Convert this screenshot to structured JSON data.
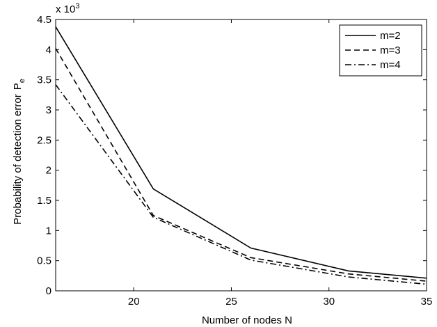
{
  "chart_data": {
    "type": "line",
    "title": "",
    "xlabel": "Number of nodes N",
    "ylabel": "Probability of detection error",
    "ylabel_symbol": "P",
    "ylabel_subscript": "e",
    "y_multiplier": "x 10",
    "y_multiplier_exp": "3",
    "xlim": [
      16,
      35
    ],
    "ylim": [
      0,
      4.5
    ],
    "x_ticks": [
      20,
      25,
      30,
      35
    ],
    "y_ticks": [
      0,
      0.5,
      1,
      1.5,
      2,
      2.5,
      3,
      3.5,
      4,
      4.5
    ],
    "grid": false,
    "legend_position": "top-right",
    "x": [
      16,
      21,
      26,
      31,
      35
    ],
    "series": [
      {
        "name": "m=2",
        "values": [
          4.38,
          1.69,
          0.71,
          0.33,
          0.21
        ],
        "dash": "solid",
        "color": "#000000"
      },
      {
        "name": "m=3",
        "values": [
          4.02,
          1.25,
          0.55,
          0.28,
          0.16
        ],
        "dash": "dashed",
        "color": "#000000"
      },
      {
        "name": "m=4",
        "values": [
          3.42,
          1.22,
          0.51,
          0.23,
          0.11
        ],
        "dash": "dashdot",
        "color": "#000000"
      }
    ]
  }
}
